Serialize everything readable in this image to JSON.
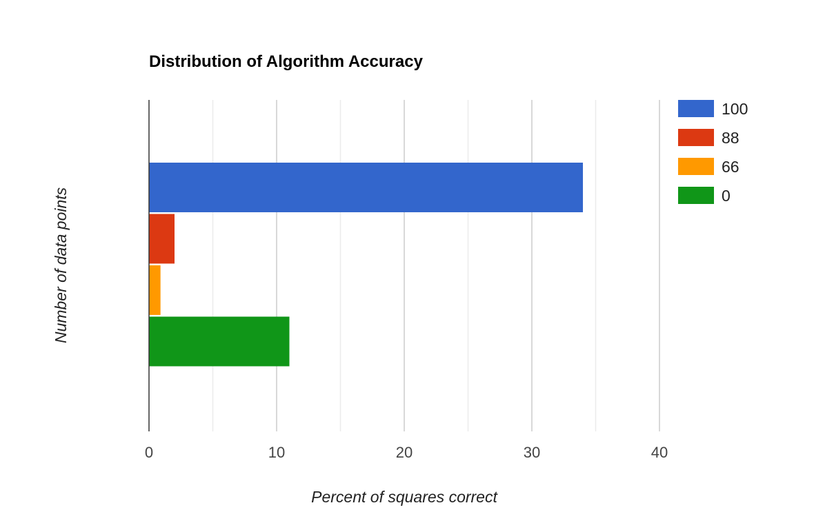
{
  "chart_data": {
    "type": "bar",
    "orientation": "horizontal",
    "title": "Distribution of Algorithm Accuracy",
    "xlabel": "Percent of squares correct",
    "ylabel": "Number of data points",
    "xlim": [
      0,
      40
    ],
    "xticks": [
      "0",
      "10",
      "20",
      "30",
      "40"
    ],
    "grid": true,
    "legend_position": "right",
    "series": [
      {
        "name": "100",
        "value": 34,
        "color": "#3366cc"
      },
      {
        "name": "88",
        "value": 2,
        "color": "#dc3912"
      },
      {
        "name": "66",
        "value": 0.9,
        "color": "#ff9900"
      },
      {
        "name": "0",
        "value": 11,
        "color": "#109618"
      }
    ]
  }
}
